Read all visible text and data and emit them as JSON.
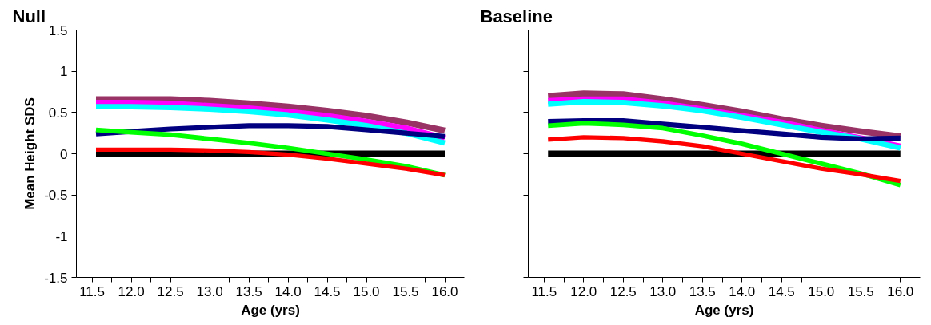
{
  "chart_data": [
    {
      "type": "line",
      "title": "Null",
      "xlabel": "Age (yrs)",
      "ylabel": "Mean Height SDS",
      "x": [
        11.55,
        12.0,
        12.5,
        13.0,
        13.5,
        14.0,
        14.5,
        15.0,
        15.5,
        16.0
      ],
      "series": [
        {
          "color": "#000000",
          "values": [
            0,
            0,
            0,
            0,
            0,
            0,
            0,
            0,
            0,
            0
          ]
        },
        {
          "color": "#993366",
          "values": [
            0.66,
            0.66,
            0.66,
            0.64,
            0.61,
            0.57,
            0.52,
            0.46,
            0.38,
            0.28
          ]
        },
        {
          "color": "#ff00ff",
          "values": [
            0.62,
            0.62,
            0.61,
            0.58,
            0.55,
            0.51,
            0.46,
            0.39,
            0.31,
            0.19
          ]
        },
        {
          "color": "#00ffff",
          "values": [
            0.57,
            0.57,
            0.56,
            0.54,
            0.51,
            0.47,
            0.41,
            0.34,
            0.25,
            0.13
          ]
        },
        {
          "color": "#000080",
          "values": [
            0.24,
            0.27,
            0.3,
            0.32,
            0.34,
            0.34,
            0.33,
            0.29,
            0.25,
            0.21
          ]
        },
        {
          "color": "#00ff00",
          "values": [
            0.29,
            0.26,
            0.23,
            0.18,
            0.13,
            0.07,
            0.0,
            -0.07,
            -0.15,
            -0.26
          ]
        },
        {
          "color": "#ff0000",
          "values": [
            0.05,
            0.05,
            0.05,
            0.04,
            0.02,
            -0.01,
            -0.06,
            -0.12,
            -0.18,
            -0.26
          ]
        }
      ],
      "xlim": [
        11.3,
        16.25
      ],
      "xticks": [
        {
          "value": 11.5,
          "label": "11.5"
        },
        {
          "value": 11.75,
          "label": null
        },
        {
          "value": 12.0,
          "label": "12.0"
        },
        {
          "value": 12.25,
          "label": null
        },
        {
          "value": 12.5,
          "label": "12.5"
        },
        {
          "value": 12.75,
          "label": null
        },
        {
          "value": 13.0,
          "label": "13.0"
        },
        {
          "value": 13.25,
          "label": null
        },
        {
          "value": 13.5,
          "label": "13.5"
        },
        {
          "value": 13.75,
          "label": null
        },
        {
          "value": 14.0,
          "label": "14.0"
        },
        {
          "value": 14.25,
          "label": null
        },
        {
          "value": 14.5,
          "label": "14.5"
        },
        {
          "value": 14.75,
          "label": null
        },
        {
          "value": 15.0,
          "label": "15.0"
        },
        {
          "value": 15.25,
          "label": null
        },
        {
          "value": 15.5,
          "label": "15.5"
        },
        {
          "value": 15.75,
          "label": null
        },
        {
          "value": 16.0,
          "label": "16.0"
        }
      ],
      "ylim": [
        -1.5,
        1.5
      ],
      "yticks": [
        -1.5,
        -1,
        -0.5,
        0,
        0.5,
        1,
        1.5
      ],
      "grid": false
    },
    {
      "type": "line",
      "title": "Baseline",
      "xlabel": "Age (yrs)",
      "x": [
        11.55,
        12.0,
        12.5,
        13.0,
        13.5,
        14.0,
        14.5,
        15.0,
        15.5,
        16.0
      ],
      "series": [
        {
          "color": "#000000",
          "values": [
            0,
            0,
            0,
            0,
            0,
            0,
            0,
            0,
            0,
            0
          ]
        },
        {
          "color": "#993366",
          "values": [
            0.7,
            0.73,
            0.72,
            0.66,
            0.59,
            0.51,
            0.42,
            0.34,
            0.27,
            0.21
          ]
        },
        {
          "color": "#ff00ff",
          "values": [
            0.64,
            0.66,
            0.66,
            0.61,
            0.54,
            0.46,
            0.38,
            0.28,
            0.19,
            0.09
          ]
        },
        {
          "color": "#00ffff",
          "values": [
            0.6,
            0.63,
            0.62,
            0.58,
            0.52,
            0.44,
            0.35,
            0.26,
            0.18,
            0.07
          ]
        },
        {
          "color": "#000080",
          "values": [
            0.39,
            0.4,
            0.4,
            0.36,
            0.32,
            0.28,
            0.24,
            0.2,
            0.18,
            0.19
          ]
        },
        {
          "color": "#00ff00",
          "values": [
            0.34,
            0.37,
            0.35,
            0.31,
            0.22,
            0.12,
            0.0,
            -0.12,
            -0.24,
            -0.38
          ]
        },
        {
          "color": "#ff0000",
          "values": [
            0.17,
            0.2,
            0.19,
            0.15,
            0.09,
            0.0,
            -0.09,
            -0.18,
            -0.25,
            -0.33
          ]
        }
      ],
      "xlim": [
        11.3,
        16.25
      ],
      "xticks": [
        {
          "value": 11.5,
          "label": "11.5"
        },
        {
          "value": 11.75,
          "label": null
        },
        {
          "value": 12.0,
          "label": "12.0"
        },
        {
          "value": 12.25,
          "label": null
        },
        {
          "value": 12.5,
          "label": "12.5"
        },
        {
          "value": 12.75,
          "label": null
        },
        {
          "value": 13.0,
          "label": "13.0"
        },
        {
          "value": 13.25,
          "label": null
        },
        {
          "value": 13.5,
          "label": "13.5"
        },
        {
          "value": 13.75,
          "label": null
        },
        {
          "value": 14.0,
          "label": "14.0"
        },
        {
          "value": 14.25,
          "label": null
        },
        {
          "value": 14.5,
          "label": "14.5"
        },
        {
          "value": 14.75,
          "label": null
        },
        {
          "value": 15.0,
          "label": "15.0"
        },
        {
          "value": 15.25,
          "label": null
        },
        {
          "value": 15.5,
          "label": "15.5"
        },
        {
          "value": 15.75,
          "label": null
        },
        {
          "value": 16.0,
          "label": "16.0"
        }
      ],
      "ylim": [
        -1.5,
        1.5
      ],
      "yticks": [
        -1.5,
        -1,
        -0.5,
        0,
        0.5,
        1,
        1.5
      ],
      "tick_labels": "x",
      "grid": false
    }
  ]
}
